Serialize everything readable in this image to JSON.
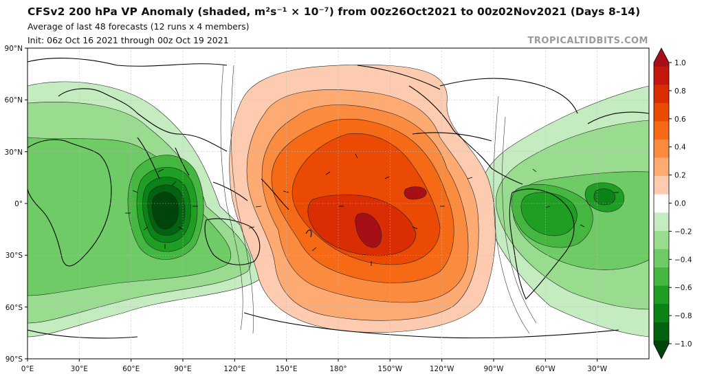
{
  "header": {
    "title": "CFSv2 200 hPa VP Anomaly (shaded, m²s⁻¹ × 10⁻⁷) from 00z26Oct2021 to 00z02Nov2021 (Days 8-14)",
    "subtitle": "Average of last 48 forecasts (12 runs x 4 members)",
    "init": "Init: 06z Oct 16 2021 through 00z Oct 19 2021",
    "brand": "TROPICALTIDBITS.COM"
  },
  "map": {
    "lat_labels": [
      "90°N",
      "60°N",
      "30°N",
      "0°",
      "30°S",
      "60°S",
      "90°S"
    ],
    "lon_labels": [
      "0°E",
      "30°E",
      "60°E",
      "90°E",
      "120°E",
      "150°E",
      "180°",
      "150°W",
      "120°W",
      "90°W",
      "60°W",
      "30°W"
    ],
    "negative_center_lon": 85,
    "negative_center_lat": -5,
    "positive_center_lon": -160,
    "positive_center_lat": -15
  },
  "colorbar": {
    "labels": [
      "1.0",
      "0.8",
      "0.6",
      "0.4",
      "0.2",
      "0.0",
      "−0.2",
      "−0.4",
      "−0.6",
      "−0.8",
      "−1.0"
    ],
    "colors": [
      "#a50f15",
      "#c4180c",
      "#db2d04",
      "#ea4a03",
      "#f66a15",
      "#fb8b3e",
      "#fdaa73",
      "#fdcbaf",
      "#ffffff",
      "#c4ecc0",
      "#99dc8f",
      "#6fcb66",
      "#45b63f",
      "#1e9e22",
      "#0a8216",
      "#03620f",
      "#004409"
    ]
  }
}
